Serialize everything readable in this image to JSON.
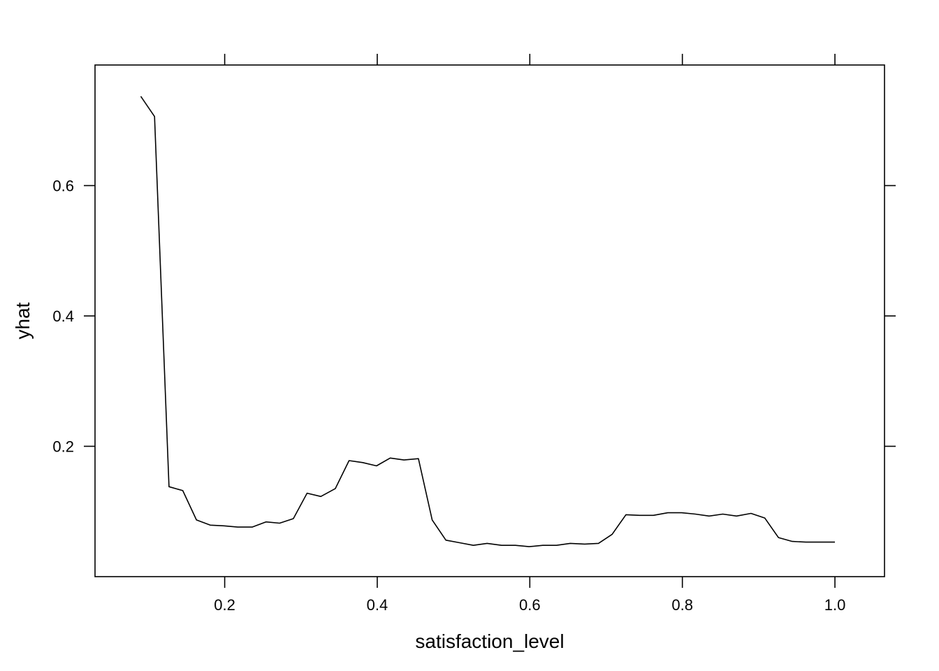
{
  "chart_data": {
    "type": "line",
    "xlabel": "satisfaction_level",
    "ylabel": "yhat",
    "xlim": [
      0.03,
      1.065
    ],
    "ylim": [
      0.0,
      0.785
    ],
    "x_ticks": [
      0.2,
      0.4,
      0.6,
      0.8,
      1.0
    ],
    "x_tick_labels": [
      "0.2",
      "0.4",
      "0.6",
      "0.8",
      "1.0"
    ],
    "y_ticks": [
      0.2,
      0.4,
      0.6
    ],
    "y_tick_labels": [
      "0.2",
      "0.4",
      "0.6"
    ],
    "grid": false,
    "line_color": "#000000",
    "series": [
      {
        "x": [
          0.09,
          0.108,
          0.127,
          0.145,
          0.163,
          0.181,
          0.199,
          0.217,
          0.236,
          0.254,
          0.272,
          0.29,
          0.308,
          0.326,
          0.345,
          0.363,
          0.381,
          0.399,
          0.417,
          0.435,
          0.454,
          0.472,
          0.49,
          0.508,
          0.526,
          0.544,
          0.563,
          0.581,
          0.599,
          0.617,
          0.635,
          0.653,
          0.672,
          0.69,
          0.708,
          0.726,
          0.744,
          0.762,
          0.781,
          0.799,
          0.817,
          0.835,
          0.853,
          0.871,
          0.89,
          0.908,
          0.926,
          0.944,
          0.962,
          0.98,
          1.0
        ],
        "y": [
          0.737,
          0.706,
          0.138,
          0.132,
          0.087,
          0.079,
          0.078,
          0.076,
          0.076,
          0.084,
          0.082,
          0.089,
          0.128,
          0.123,
          0.135,
          0.178,
          0.175,
          0.17,
          0.182,
          0.179,
          0.181,
          0.087,
          0.056,
          0.052,
          0.048,
          0.051,
          0.048,
          0.048,
          0.046,
          0.048,
          0.048,
          0.051,
          0.05,
          0.051,
          0.065,
          0.095,
          0.094,
          0.094,
          0.098,
          0.098,
          0.096,
          0.093,
          0.096,
          0.093,
          0.097,
          0.09,
          0.06,
          0.054,
          0.053,
          0.053,
          0.053
        ]
      }
    ]
  }
}
